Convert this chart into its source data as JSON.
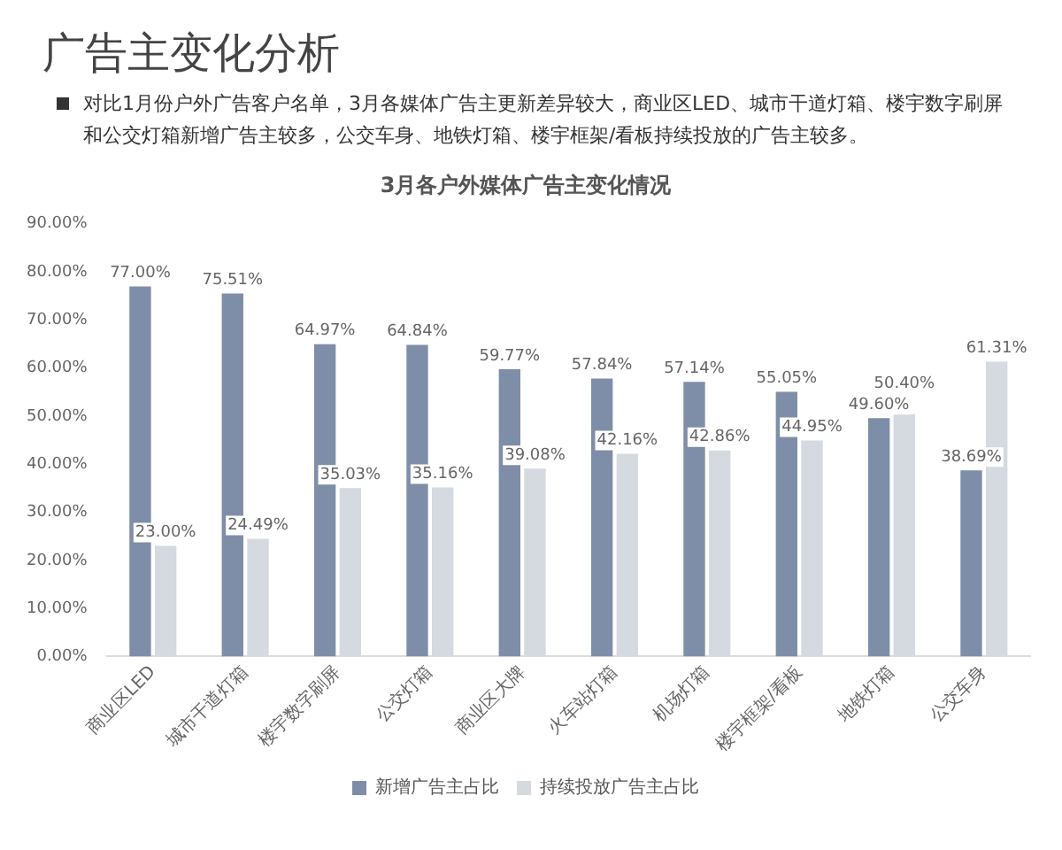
{
  "chart_data": {
    "type": "bar",
    "title": "广告主变化分析",
    "subtitle": "对比1月份户外广告客户名单，3月各媒体广告主更新差异较大，商业区LED、城市干道灯箱、楼宇数字刷屏和公交灯箱新增广告主较多，公交车身、地铁灯箱、楼宇框架/看板持续投放的广告主较多。",
    "annotations": [
      "3月各户外媒体广告主变化情况"
    ],
    "categories": [
      "商业区LED",
      "城市干道灯箱",
      "楼宇数字刷屏",
      "公交灯箱",
      "商业区大牌",
      "火车站灯箱",
      "机场灯箱",
      "楼宇框架/看板",
      "地铁灯箱",
      "公交车身"
    ],
    "series": [
      {
        "name": "新增广告主占比",
        "color": "#7f8ea8",
        "values": [
          77.0,
          75.51,
          64.97,
          64.84,
          59.77,
          57.84,
          57.14,
          55.05,
          49.6,
          38.69
        ],
        "value_labels": [
          "77.00%",
          "75.51%",
          "64.97%",
          "64.84%",
          "59.77%",
          "57.84%",
          "57.14%",
          "55.05%",
          "49.60%",
          "38.69%"
        ]
      },
      {
        "name": "持续投放广告主占比",
        "color": "#d5d9e0",
        "values": [
          23.0,
          24.49,
          35.03,
          35.16,
          39.08,
          42.16,
          42.86,
          44.95,
          50.4,
          61.31
        ],
        "value_labels": [
          "23.00%",
          "24.49%",
          "35.03%",
          "35.16%",
          "39.08%",
          "42.16%",
          "42.86%",
          "44.95%",
          "50.40%",
          "61.31%"
        ]
      }
    ],
    "ylim": [
      0,
      90
    ],
    "yticks": [
      {
        "value": 0,
        "label": "0.00%"
      },
      {
        "value": 10,
        "label": "10.00%"
      },
      {
        "value": 20,
        "label": "20.00%"
      },
      {
        "value": 30,
        "label": "30.00%"
      },
      {
        "value": 40,
        "label": "40.00%"
      },
      {
        "value": 50,
        "label": "50.00%"
      },
      {
        "value": 60,
        "label": "60.00%"
      },
      {
        "value": 70,
        "label": "70.00%"
      },
      {
        "value": 80,
        "label": "80.00%"
      },
      {
        "value": 90,
        "label": "90.00%"
      }
    ],
    "grid": false,
    "legend": "bottom"
  }
}
